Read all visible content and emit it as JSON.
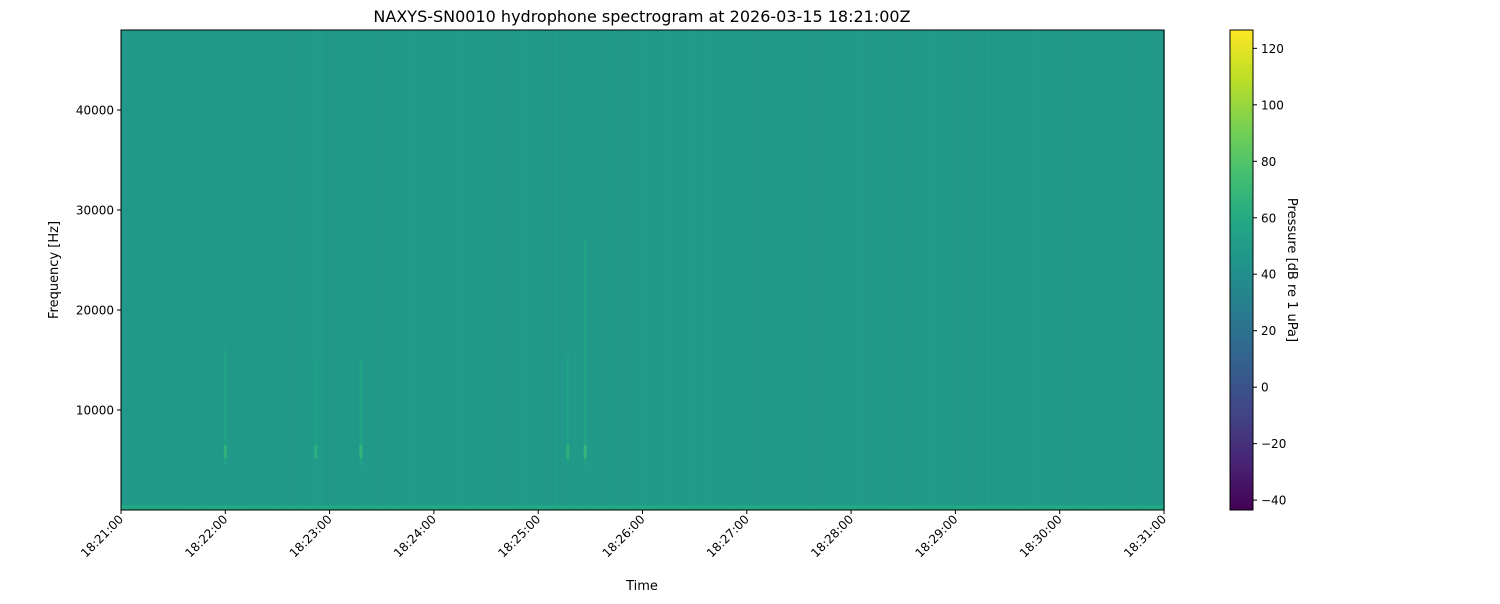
{
  "chart_data": {
    "type": "heatmap",
    "title": "NAXYS-SN0010 hydrophone spectrogram at 2026-03-15 18:21:00Z",
    "xlabel": "Time",
    "ylabel": "Frequency [Hz]",
    "xlim": [
      "18:21:00",
      "18:31:00"
    ],
    "ylim": [
      0,
      48000
    ],
    "xticks": [
      "18:21:00",
      "18:22:00",
      "18:23:00",
      "18:24:00",
      "18:25:00",
      "18:26:00",
      "18:27:00",
      "18:28:00",
      "18:29:00",
      "18:30:00",
      "18:31:00"
    ],
    "yticks": [
      10000,
      20000,
      30000,
      40000
    ],
    "grid": false,
    "colormap": "viridis",
    "colorbar": {
      "label": "Pressure [dB re 1 uPa]",
      "range": [
        -43.5,
        126.5
      ],
      "ticks": [
        -40,
        -20,
        0,
        20,
        40,
        60,
        80,
        100,
        120
      ]
    },
    "background_level_db": 48,
    "low_frequency_band": {
      "freq_range_hz": [
        0,
        500
      ],
      "level_db": 58
    },
    "transient_events": [
      {
        "time": "18:22:00",
        "freq_range_hz": [
          4500,
          16000
        ],
        "level_db": 58
      },
      {
        "time": "18:22:52",
        "freq_range_hz": [
          5000,
          15000
        ],
        "level_db": 56
      },
      {
        "time": "18:23:18",
        "freq_range_hz": [
          4500,
          15000
        ],
        "level_db": 59
      },
      {
        "time": "18:25:17",
        "freq_range_hz": [
          4500,
          15500
        ],
        "level_db": 57
      },
      {
        "time": "18:25:27",
        "freq_range_hz": [
          4500,
          27000
        ],
        "level_db": 60
      }
    ]
  }
}
